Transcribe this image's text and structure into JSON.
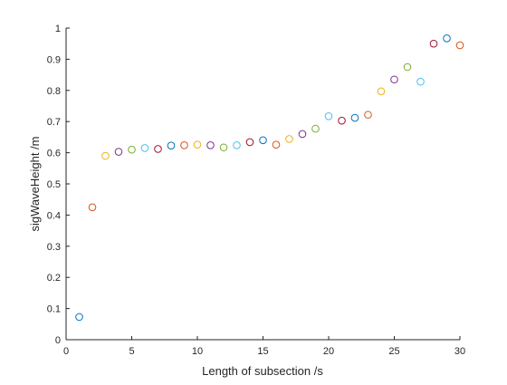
{
  "chart_data": {
    "type": "scatter",
    "title": "",
    "xlabel": "Length of subsection /s",
    "ylabel": "sigWaveHeight /m",
    "xlim": [
      0,
      30
    ],
    "ylim": [
      0,
      1
    ],
    "xticks": [
      "0",
      "5",
      "10",
      "15",
      "20",
      "25",
      "30"
    ],
    "yticks": [
      "0",
      "0.1",
      "0.2",
      "0.3",
      "0.4",
      "0.5",
      "0.6",
      "0.7",
      "0.8",
      "0.9",
      "1"
    ],
    "grid": false,
    "legend": "none",
    "marker": "open-circle",
    "color_cycle": [
      "#0072BD",
      "#D95319",
      "#EDB120",
      "#7E2F8E",
      "#77AC30",
      "#4DBEEE",
      "#A2142F"
    ],
    "x": [
      1,
      2,
      3,
      4,
      5,
      6,
      7,
      8,
      9,
      10,
      11,
      12,
      13,
      14,
      15,
      16,
      17,
      18,
      19,
      20,
      21,
      22,
      23,
      24,
      25,
      26,
      27,
      28,
      29,
      30
    ],
    "y": [
      0.073,
      0.425,
      0.59,
      0.603,
      0.61,
      0.615,
      0.612,
      0.623,
      0.624,
      0.626,
      0.624,
      0.617,
      0.624,
      0.634,
      0.64,
      0.626,
      0.644,
      0.66,
      0.677,
      0.717,
      0.703,
      0.712,
      0.722,
      0.797,
      0.835,
      0.875,
      0.828,
      0.95,
      0.967,
      0.945
    ]
  }
}
